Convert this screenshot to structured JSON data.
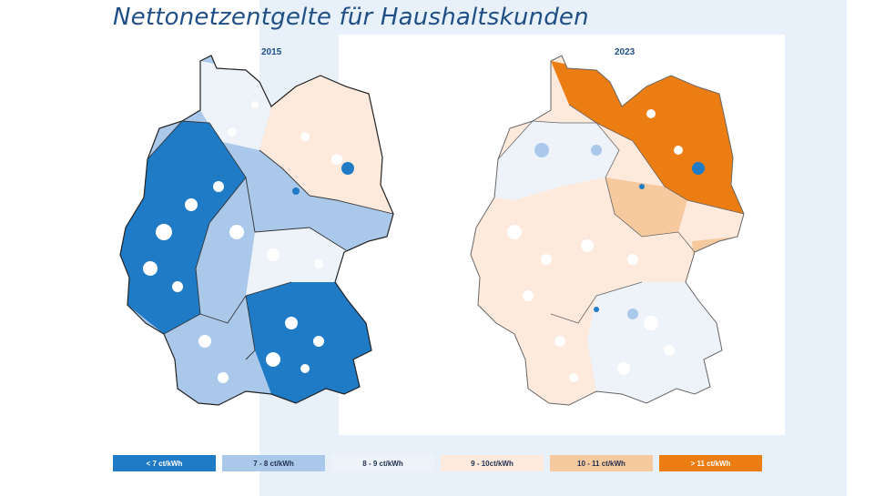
{
  "title": "Nettonetzentgelte für Haushaltskunden",
  "maps": [
    {
      "year": "2015"
    },
    {
      "year": "2023"
    }
  ],
  "legend": [
    {
      "label": "< 7 ct/kWh",
      "color": "#1f7bc6",
      "text_color": "#ffffff"
    },
    {
      "label": "7 - 8 ct/kWh",
      "color": "#a9c8ea",
      "text_color": "#1f2f4f"
    },
    {
      "label": "8 - 9 ct/kWh",
      "color": "#eef3fa",
      "text_color": "#1f2f4f"
    },
    {
      "label": "9 - 10ct/kWh",
      "color": "#fdeadc",
      "text_color": "#1f2f4f"
    },
    {
      "label": "10 - 11 ct/kWh",
      "color": "#f7c99f",
      "text_color": "#1f2f4f"
    },
    {
      "label": "> 11 ct/kWh",
      "color": "#eb7d12",
      "text_color": "#ffffff"
    }
  ]
}
